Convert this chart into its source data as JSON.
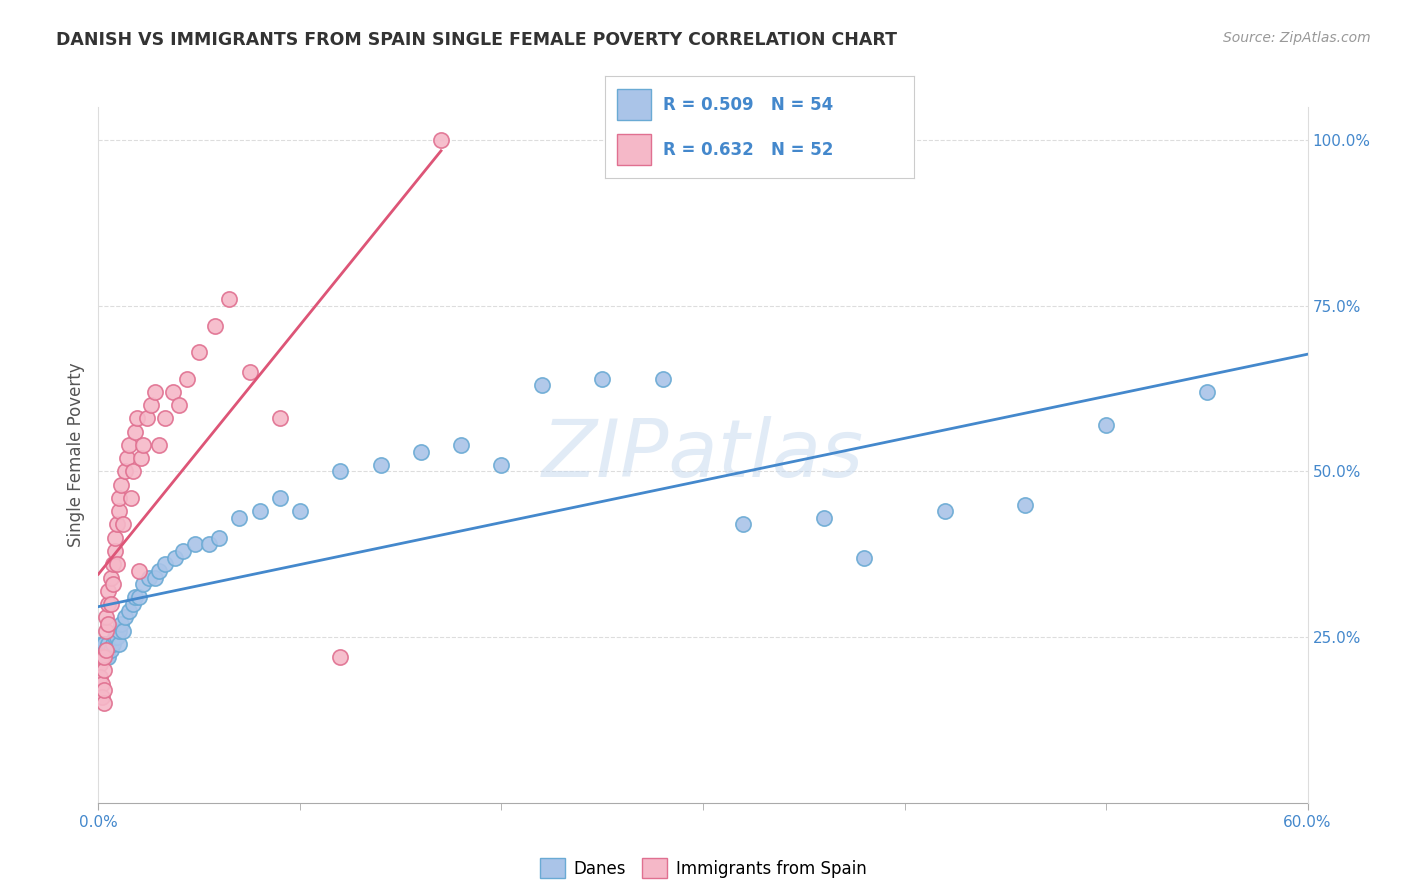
{
  "title": "DANISH VS IMMIGRANTS FROM SPAIN SINGLE FEMALE POVERTY CORRELATION CHART",
  "source": "Source: ZipAtlas.com",
  "ylabel": "Single Female Poverty",
  "legend_label1": "Danes",
  "legend_label2": "Immigrants from Spain",
  "R1": "0.509",
  "N1": "54",
  "R2": "0.632",
  "N2": "52",
  "blue_scatter_color": "#aac4e8",
  "blue_edge_color": "#6aaad4",
  "pink_scatter_color": "#f5b8c8",
  "pink_edge_color": "#e07090",
  "blue_line_color": "#4488cc",
  "pink_line_color": "#dd5577",
  "watermark_color": "#c5d8ee",
  "background_color": "#ffffff",
  "grid_color": "#dddddd",
  "xmin": 0.0,
  "xmax": 0.6,
  "ymin": 0.0,
  "ymax": 1.05,
  "right_axis_color": "#4488cc",
  "title_color": "#333333",
  "source_color": "#999999",
  "ylabel_color": "#555555",
  "blue_scatter_x": [
    0.001,
    0.001,
    0.002,
    0.002,
    0.003,
    0.003,
    0.003,
    0.004,
    0.004,
    0.005,
    0.005,
    0.005,
    0.006,
    0.007,
    0.008,
    0.009,
    0.01,
    0.01,
    0.011,
    0.012,
    0.013,
    0.015,
    0.017,
    0.018,
    0.02,
    0.022,
    0.025,
    0.028,
    0.03,
    0.033,
    0.038,
    0.042,
    0.048,
    0.055,
    0.06,
    0.07,
    0.08,
    0.09,
    0.1,
    0.12,
    0.14,
    0.16,
    0.18,
    0.2,
    0.22,
    0.25,
    0.28,
    0.32,
    0.36,
    0.38,
    0.42,
    0.46,
    0.5,
    0.55
  ],
  "blue_scatter_y": [
    0.22,
    0.23,
    0.22,
    0.24,
    0.22,
    0.23,
    0.24,
    0.22,
    0.23,
    0.22,
    0.23,
    0.24,
    0.23,
    0.24,
    0.25,
    0.25,
    0.24,
    0.26,
    0.27,
    0.26,
    0.28,
    0.29,
    0.3,
    0.31,
    0.31,
    0.33,
    0.34,
    0.34,
    0.35,
    0.36,
    0.37,
    0.38,
    0.39,
    0.39,
    0.4,
    0.43,
    0.44,
    0.46,
    0.44,
    0.5,
    0.51,
    0.53,
    0.54,
    0.51,
    0.63,
    0.64,
    0.64,
    0.42,
    0.43,
    0.37,
    0.44,
    0.45,
    0.57,
    0.62
  ],
  "pink_scatter_x": [
    0.001,
    0.001,
    0.002,
    0.002,
    0.002,
    0.003,
    0.003,
    0.003,
    0.003,
    0.004,
    0.004,
    0.004,
    0.005,
    0.005,
    0.005,
    0.006,
    0.006,
    0.007,
    0.007,
    0.008,
    0.008,
    0.009,
    0.009,
    0.01,
    0.01,
    0.011,
    0.012,
    0.013,
    0.014,
    0.015,
    0.016,
    0.017,
    0.018,
    0.019,
    0.02,
    0.021,
    0.022,
    0.024,
    0.026,
    0.028,
    0.03,
    0.033,
    0.037,
    0.04,
    0.044,
    0.05,
    0.058,
    0.065,
    0.075,
    0.09,
    0.12,
    0.17
  ],
  "pink_scatter_y": [
    0.21,
    0.19,
    0.18,
    0.16,
    0.22,
    0.15,
    0.17,
    0.2,
    0.22,
    0.23,
    0.26,
    0.28,
    0.27,
    0.3,
    0.32,
    0.3,
    0.34,
    0.33,
    0.36,
    0.38,
    0.4,
    0.42,
    0.36,
    0.44,
    0.46,
    0.48,
    0.42,
    0.5,
    0.52,
    0.54,
    0.46,
    0.5,
    0.56,
    0.58,
    0.35,
    0.52,
    0.54,
    0.58,
    0.6,
    0.62,
    0.54,
    0.58,
    0.62,
    0.6,
    0.64,
    0.68,
    0.72,
    0.76,
    0.65,
    0.58,
    0.22,
    1.0
  ]
}
